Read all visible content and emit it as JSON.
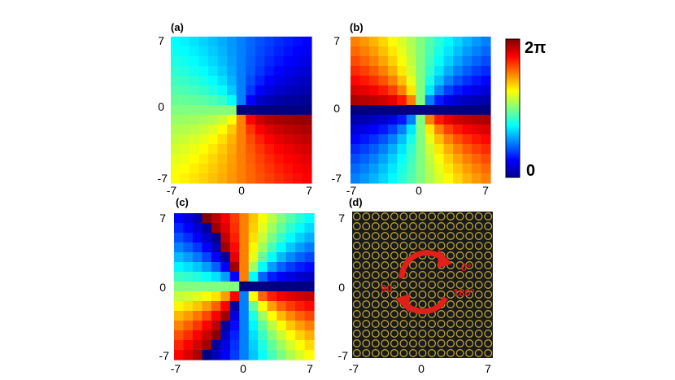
{
  "chart_data": [
    {
      "type": "heatmap",
      "panel_label": "(a)",
      "field": "phase = atan2(y, x) mod 2π",
      "x_ticks": [
        "-7",
        "0",
        "7"
      ],
      "y_ticks": [
        "7",
        "0",
        "-7"
      ],
      "xlim": [
        -7,
        7
      ],
      "ylim": [
        -7,
        7
      ],
      "grid_size": 15,
      "charge": 1
    },
    {
      "type": "heatmap",
      "panel_label": "(b)",
      "field": "phase = 2·atan2(y, x) mod 2π",
      "x_ticks": [
        "-7",
        "0",
        "7"
      ],
      "y_ticks": [
        "7",
        "0",
        "-7"
      ],
      "xlim": [
        -7,
        7
      ],
      "ylim": [
        -7,
        7
      ],
      "grid_size": 15,
      "charge": 2
    },
    {
      "type": "heatmap",
      "panel_label": "(c)",
      "field": "phase = 3·atan2(y, x) mod 2π",
      "x_ticks": [
        "-7",
        "0",
        "7"
      ],
      "y_ticks": [
        "7",
        "0",
        "-7"
      ],
      "xlim": [
        -7,
        7
      ],
      "ylim": [
        -7,
        7
      ],
      "grid_size": 15,
      "charge": 3
    },
    {
      "type": "image",
      "panel_label": "(d)",
      "description_labels": [
        "0°",
        "90°",
        "180°"
      ],
      "x_ticks": [
        "-7",
        "0",
        "7"
      ],
      "y_ticks": [
        "7",
        "0",
        "-7"
      ],
      "ring_grid": 15
    }
  ],
  "colorbar": {
    "colormap": "jet",
    "max_label": "2π",
    "min_label": "0"
  },
  "colors": {
    "panel_d_background": "#1a1a1a",
    "panel_d_rings": "#b9a23a",
    "panel_d_arrows": "#e0201a"
  }
}
